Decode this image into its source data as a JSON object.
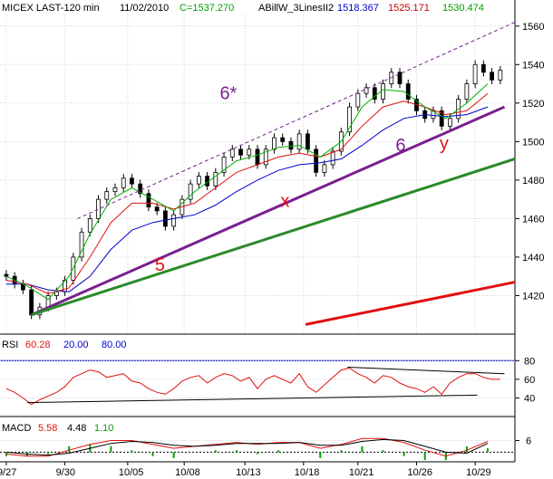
{
  "header": {
    "symbol": "MICEX LAST-120 min",
    "date": "11/02/2010",
    "close": "C=1537.270",
    "indicator": "ABillW_3LinesII2",
    "line1": "1518.367",
    "line2": "1525.171",
    "line3": "1530.474",
    "colors": {
      "line1": "#0000cc",
      "line2": "#cc0000",
      "line3": "#00a000",
      "close": "#00a000"
    }
  },
  "rsi_header": {
    "label": "RSI",
    "value": "60.28",
    "low": "20.00",
    "high": "80.00"
  },
  "macd_header": {
    "label": "MACD",
    "v1": "5.58",
    "v2": "4.48",
    "v3": "1.10"
  },
  "wave_labels": [
    {
      "text": "6*",
      "color": "#7a1f8f",
      "x": 10.2,
      "y": 1522
    },
    {
      "text": "6",
      "color": "#7a1f8f",
      "x": 18.6,
      "y": 1495
    },
    {
      "text": "y",
      "color": "#e01010",
      "x": 20.7,
      "y": 1496
    },
    {
      "text": "x",
      "color": "#e01010",
      "x": 13.1,
      "y": 1466
    },
    {
      "text": "5",
      "color": "#e01010",
      "x": 7.1,
      "y": 1433
    }
  ],
  "chart_data": [
    {
      "type": "candlestick",
      "name": "price",
      "x_tick_labels": [
        "9/27",
        "9/30",
        "10/05",
        "10/08",
        "10/13",
        "10/18",
        "10/21",
        "10/26",
        "10/29"
      ],
      "x_tick_positions": [
        0,
        2.8,
        5.8,
        8.5,
        11.4,
        14.2,
        16.8,
        19.6,
        22.4
      ],
      "xlim": [
        -0.3,
        24.3
      ],
      "ylim": [
        1400,
        1566
      ],
      "y_ticks": [
        1420,
        1440,
        1460,
        1480,
        1500,
        1520,
        1540,
        1560
      ],
      "close_series": [
        [
          0,
          1430
        ],
        [
          0.4,
          1426
        ],
        [
          0.8,
          1423
        ],
        [
          1.2,
          1410
        ],
        [
          1.6,
          1414
        ],
        [
          2,
          1420
        ],
        [
          2.4,
          1422
        ],
        [
          2.8,
          1428
        ],
        [
          3.2,
          1440
        ],
        [
          3.6,
          1453
        ],
        [
          4,
          1460
        ],
        [
          4.4,
          1470
        ],
        [
          4.8,
          1474
        ],
        [
          5.2,
          1476
        ],
        [
          5.6,
          1481
        ],
        [
          6,
          1478
        ],
        [
          6.4,
          1473
        ],
        [
          6.8,
          1466
        ],
        [
          7.2,
          1464
        ],
        [
          7.6,
          1456
        ],
        [
          8,
          1462
        ],
        [
          8.4,
          1470
        ],
        [
          8.8,
          1478
        ],
        [
          9.2,
          1482
        ],
        [
          9.6,
          1477
        ],
        [
          10,
          1484
        ],
        [
          10.4,
          1492
        ],
        [
          10.8,
          1496
        ],
        [
          11.2,
          1493
        ],
        [
          11.6,
          1496
        ],
        [
          12,
          1488
        ],
        [
          12.4,
          1496
        ],
        [
          12.8,
          1502
        ],
        [
          13.2,
          1500
        ],
        [
          13.6,
          1496
        ],
        [
          14,
          1504
        ],
        [
          14.4,
          1496
        ],
        [
          14.8,
          1484
        ],
        [
          15.2,
          1488
        ],
        [
          15.6,
          1495
        ],
        [
          16,
          1505
        ],
        [
          16.4,
          1518
        ],
        [
          16.8,
          1525
        ],
        [
          17.2,
          1528
        ],
        [
          17.6,
          1522
        ],
        [
          18,
          1530
        ],
        [
          18.4,
          1536
        ],
        [
          18.8,
          1530
        ],
        [
          19.2,
          1522
        ],
        [
          19.6,
          1516
        ],
        [
          20,
          1512
        ],
        [
          20.4,
          1516
        ],
        [
          20.8,
          1508
        ],
        [
          21.2,
          1512
        ],
        [
          21.6,
          1522
        ],
        [
          22,
          1530
        ],
        [
          22.4,
          1540
        ],
        [
          22.8,
          1536
        ],
        [
          23.2,
          1532
        ],
        [
          23.6,
          1537
        ]
      ],
      "ma_green": [
        [
          0,
          1430
        ],
        [
          1,
          1425
        ],
        [
          2,
          1418
        ],
        [
          3,
          1430
        ],
        [
          4,
          1452
        ],
        [
          5,
          1470
        ],
        [
          6,
          1476
        ],
        [
          7,
          1470
        ],
        [
          8,
          1464
        ],
        [
          9,
          1474
        ],
        [
          10,
          1482
        ],
        [
          11,
          1490
        ],
        [
          12,
          1493
        ],
        [
          13,
          1497
        ],
        [
          14,
          1498
        ],
        [
          15,
          1492
        ],
        [
          16,
          1500
        ],
        [
          17,
          1518
        ],
        [
          18,
          1527
        ],
        [
          19,
          1526
        ],
        [
          20,
          1518
        ],
        [
          21,
          1512
        ],
        [
          22,
          1520
        ],
        [
          23,
          1530
        ]
      ],
      "ma_red": [
        [
          0,
          1428
        ],
        [
          1,
          1426
        ],
        [
          2,
          1421
        ],
        [
          3,
          1424
        ],
        [
          4,
          1440
        ],
        [
          5,
          1458
        ],
        [
          6,
          1468
        ],
        [
          7,
          1468
        ],
        [
          8,
          1465
        ],
        [
          9,
          1468
        ],
        [
          10,
          1476
        ],
        [
          11,
          1484
        ],
        [
          12,
          1488
        ],
        [
          13,
          1492
        ],
        [
          14,
          1494
        ],
        [
          15,
          1492
        ],
        [
          16,
          1496
        ],
        [
          17,
          1508
        ],
        [
          18,
          1518
        ],
        [
          19,
          1521
        ],
        [
          20,
          1518
        ],
        [
          21,
          1514
        ],
        [
          22,
          1516
        ],
        [
          23,
          1525
        ]
      ],
      "ma_blue": [
        [
          0,
          1426
        ],
        [
          1,
          1426
        ],
        [
          2,
          1423
        ],
        [
          3,
          1422
        ],
        [
          4,
          1430
        ],
        [
          5,
          1444
        ],
        [
          6,
          1454
        ],
        [
          7,
          1458
        ],
        [
          8,
          1460
        ],
        [
          9,
          1462
        ],
        [
          10,
          1467
        ],
        [
          11,
          1474
        ],
        [
          12,
          1480
        ],
        [
          13,
          1485
        ],
        [
          14,
          1488
        ],
        [
          15,
          1489
        ],
        [
          16,
          1491
        ],
        [
          17,
          1498
        ],
        [
          18,
          1506
        ],
        [
          19,
          1512
        ],
        [
          20,
          1514
        ],
        [
          21,
          1513
        ],
        [
          22,
          1514
        ],
        [
          23,
          1518
        ]
      ],
      "trend_lines": [
        {
          "color": "#7a1f8f",
          "style": "solid",
          "width": 3,
          "points": [
            [
              1.2,
              1410
            ],
            [
              23.8,
              1518
            ]
          ]
        },
        {
          "color": "#2a8a2a",
          "style": "solid",
          "width": 3,
          "points": [
            [
              1.2,
              1410
            ],
            [
              24.3,
              1491
            ]
          ]
        },
        {
          "color": "#7a1f8f",
          "style": "dashed",
          "width": 1,
          "points": [
            [
              3.4,
              1460
            ],
            [
              24.3,
              1562
            ]
          ]
        },
        {
          "color": "#e01010",
          "style": "solid",
          "width": 3,
          "points": [
            [
              14.3,
              1405
            ],
            [
              24.3,
              1427
            ]
          ]
        }
      ]
    },
    {
      "type": "line",
      "name": "RSI",
      "ylim": [
        22,
        90
      ],
      "y_ticks": [
        40,
        60,
        80
      ],
      "levels": [
        {
          "value": 80,
          "color": "#0000cc"
        },
        {
          "value": 20,
          "color": "#0000cc"
        }
      ],
      "series": [
        {
          "name": "RSI",
          "color": "#e01010",
          "values": [
            [
              0,
              50
            ],
            [
              0.4,
              46
            ],
            [
              0.8,
              40
            ],
            [
              1.2,
              33
            ],
            [
              1.6,
              38
            ],
            [
              2,
              42
            ],
            [
              2.4,
              46
            ],
            [
              2.8,
              52
            ],
            [
              3.2,
              62
            ],
            [
              3.6,
              66
            ],
            [
              4,
              70
            ],
            [
              4.4,
              68
            ],
            [
              4.8,
              62
            ],
            [
              5.2,
              64
            ],
            [
              5.6,
              66
            ],
            [
              6,
              58
            ],
            [
              6.4,
              56
            ],
            [
              6.8,
              50
            ],
            [
              7.2,
              46
            ],
            [
              7.6,
              44
            ],
            [
              8,
              50
            ],
            [
              8.4,
              58
            ],
            [
              8.8,
              62
            ],
            [
              9.2,
              64
            ],
            [
              9.6,
              56
            ],
            [
              10,
              62
            ],
            [
              10.4,
              66
            ],
            [
              10.8,
              64
            ],
            [
              11.2,
              58
            ],
            [
              11.6,
              62
            ],
            [
              12,
              50
            ],
            [
              12.4,
              60
            ],
            [
              12.8,
              64
            ],
            [
              13.2,
              60
            ],
            [
              13.6,
              56
            ],
            [
              14,
              66
            ],
            [
              14.4,
              52
            ],
            [
              14.8,
              46
            ],
            [
              15.2,
              54
            ],
            [
              15.6,
              62
            ],
            [
              16,
              70
            ],
            [
              16.4,
              72
            ],
            [
              16.8,
              66
            ],
            [
              17.2,
              62
            ],
            [
              17.6,
              56
            ],
            [
              18,
              64
            ],
            [
              18.4,
              62
            ],
            [
              18.8,
              56
            ],
            [
              19.2,
              52
            ],
            [
              19.6,
              50
            ],
            [
              20,
              46
            ],
            [
              20.4,
              52
            ],
            [
              20.8,
              44
            ],
            [
              21.2,
              56
            ],
            [
              21.6,
              62
            ],
            [
              22,
              66
            ],
            [
              22.4,
              66
            ],
            [
              22.8,
              62
            ],
            [
              23.2,
              60
            ],
            [
              23.6,
              60
            ]
          ]
        }
      ],
      "trend_lines": [
        {
          "color": "#000000",
          "points": [
            [
              1.0,
              35
            ],
            [
              22.5,
              43
            ]
          ]
        },
        {
          "color": "#000000",
          "points": [
            [
              16.3,
              73
            ],
            [
              23.8,
              66
            ]
          ]
        }
      ]
    },
    {
      "type": "line",
      "name": "MACD",
      "ylim": [
        -4,
        9
      ],
      "y_ticks": [
        6
      ],
      "series": [
        {
          "name": "MACD",
          "color": "#e01010",
          "values": [
            [
              0,
              -1
            ],
            [
              1,
              -2
            ],
            [
              2,
              -2
            ],
            [
              3,
              1
            ],
            [
              4,
              4
            ],
            [
              5,
              6
            ],
            [
              6,
              6
            ],
            [
              7,
              4
            ],
            [
              8,
              2
            ],
            [
              9,
              3
            ],
            [
              10,
              4
            ],
            [
              11,
              5
            ],
            [
              12,
              4
            ],
            [
              13,
              5
            ],
            [
              14,
              5
            ],
            [
              15,
              2
            ],
            [
              16,
              4
            ],
            [
              17,
              7
            ],
            [
              18,
              7
            ],
            [
              19,
              5
            ],
            [
              20,
              1
            ],
            [
              21,
              -2
            ],
            [
              22,
              1
            ],
            [
              23,
              5.5
            ]
          ]
        },
        {
          "name": "Signal",
          "color": "#000000",
          "values": [
            [
              0,
              0
            ],
            [
              1,
              -1
            ],
            [
              2,
              -1.5
            ],
            [
              3,
              -0.5
            ],
            [
              4,
              2
            ],
            [
              5,
              4.5
            ],
            [
              6,
              5.5
            ],
            [
              7,
              5
            ],
            [
              8,
              3.5
            ],
            [
              9,
              3
            ],
            [
              10,
              3.5
            ],
            [
              11,
              4.5
            ],
            [
              12,
              4.5
            ],
            [
              13,
              4.5
            ],
            [
              14,
              5
            ],
            [
              15,
              3.5
            ],
            [
              16,
              3.5
            ],
            [
              17,
              5.5
            ],
            [
              18,
              6.5
            ],
            [
              19,
              6
            ],
            [
              20,
              3
            ],
            [
              21,
              0
            ],
            [
              22,
              -0.5
            ],
            [
              23,
              4.5
            ]
          ]
        }
      ]
    }
  ]
}
